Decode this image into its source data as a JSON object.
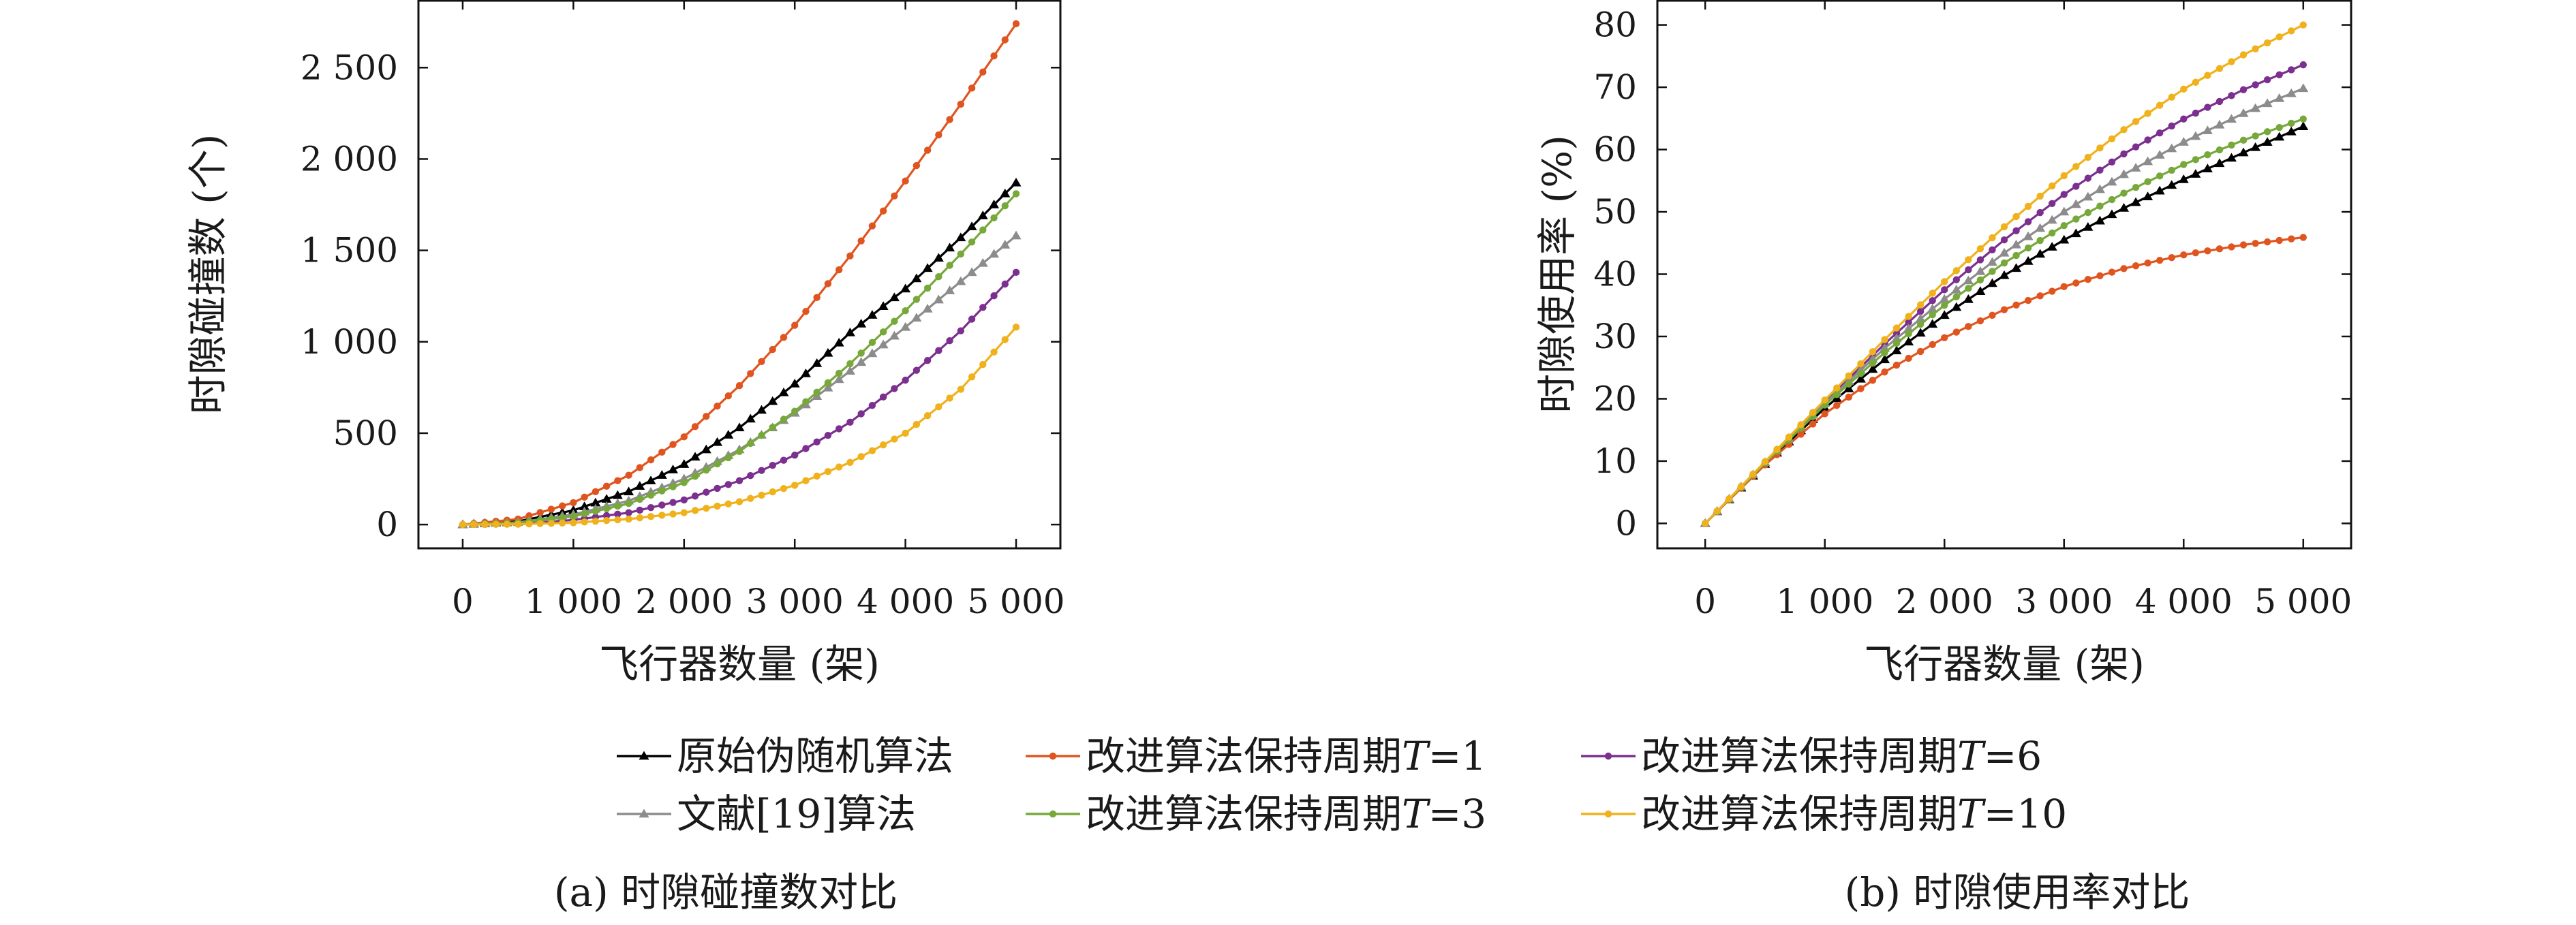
{
  "chart_data": [
    {
      "type": "line",
      "caption": "(a) 时隙碰撞数对比",
      "xlabel": "飞行器数量 (架)",
      "ylabel": "时隙碰撞数 (个)",
      "xlim": [
        -400,
        5400
      ],
      "ylim": [
        -130,
        2870
      ],
      "xticks": [
        0,
        1000,
        2000,
        3000,
        4000,
        5000
      ],
      "xtick_labels": [
        "0",
        "1 000",
        "2 000",
        "3 000",
        "4 000",
        "5 000"
      ],
      "yticks": [
        0,
        500,
        1000,
        1500,
        2000,
        2500
      ],
      "ytick_labels": [
        "0",
        "500",
        "1 000",
        "1 500",
        "2 000",
        "2 500"
      ],
      "grid": false,
      "series": [
        {
          "name": "原始伪随机算法",
          "color": "#000000",
          "marker": "triangle",
          "x": [
            0,
            500,
            1000,
            1500,
            2000,
            2500,
            3000,
            3500,
            4000,
            4500,
            5000
          ],
          "y": [
            0,
            18,
            78,
            180,
            330,
            530,
            770,
            1050,
            1290,
            1570,
            1870
          ]
        },
        {
          "name": "改进算法保持周期T=1",
          "color": "#e0551f",
          "marker": "dot",
          "x": [
            0,
            500,
            1000,
            1500,
            2000,
            2500,
            3000,
            3500,
            4000,
            4500,
            5000
          ],
          "y": [
            0,
            30,
            120,
            270,
            480,
            760,
            1090,
            1470,
            1880,
            2300,
            2740
          ]
        },
        {
          "name": "改进算法保持周期T=6",
          "color": "#7b2f8e",
          "marker": "dot",
          "x": [
            0,
            500,
            1000,
            1500,
            2000,
            2500,
            3000,
            3500,
            4000,
            4500,
            5000
          ],
          "y": [
            0,
            5,
            25,
            65,
            135,
            240,
            380,
            560,
            790,
            1060,
            1380
          ]
        },
        {
          "name": "文献[19]算法",
          "color": "#8c8c8c",
          "marker": "triangle",
          "x": [
            0,
            500,
            1000,
            1500,
            2000,
            2500,
            3000,
            3500,
            4000,
            4500,
            5000
          ],
          "y": [
            0,
            12,
            55,
            130,
            250,
            410,
            610,
            840,
            1080,
            1330,
            1580
          ]
        },
        {
          "name": "改进算法保持周期T=3",
          "color": "#77a83a",
          "marker": "dot",
          "x": [
            0,
            500,
            1000,
            1500,
            2000,
            2500,
            3000,
            3500,
            4000,
            4500,
            5000
          ],
          "y": [
            0,
            10,
            45,
            115,
            230,
            400,
            620,
            880,
            1170,
            1480,
            1810
          ]
        },
        {
          "name": "改进算法保持周期T=10",
          "color": "#f0b21c",
          "marker": "dot",
          "x": [
            0,
            500,
            1000,
            1500,
            2000,
            2500,
            3000,
            3500,
            4000,
            4500,
            5000
          ],
          "y": [
            0,
            2,
            10,
            30,
            65,
            125,
            215,
            340,
            500,
            740,
            1080
          ]
        }
      ]
    },
    {
      "type": "line",
      "caption": "(b) 时隙使用率对比",
      "xlabel": "飞行器数量 (架)",
      "ylabel": "时隙使用率 (%)",
      "xlim": [
        -400,
        5400
      ],
      "ylim": [
        -4,
        84
      ],
      "xticks": [
        0,
        1000,
        2000,
        3000,
        4000,
        5000
      ],
      "xtick_labels": [
        "0",
        "1 000",
        "2 000",
        "3 000",
        "4 000",
        "5 000"
      ],
      "yticks": [
        0,
        10,
        20,
        30,
        40,
        50,
        60,
        70,
        80
      ],
      "ytick_labels": [
        "0",
        "10",
        "20",
        "30",
        "40",
        "50",
        "60",
        "70",
        "80"
      ],
      "grid": false,
      "series": [
        {
          "name": "原始伪随机算法",
          "color": "#000000",
          "marker": "triangle",
          "x": [
            0,
            500,
            1000,
            1500,
            2000,
            2500,
            3000,
            3500,
            4000,
            4500,
            5000
          ],
          "y": [
            0,
            9.5,
            18.5,
            26.3,
            33.4,
            39.8,
            45.5,
            50.6,
            55.2,
            59.5,
            63.7
          ]
        },
        {
          "name": "改进算法保持周期T=1",
          "color": "#e0551f",
          "marker": "dot",
          "x": [
            0,
            500,
            1000,
            1500,
            2000,
            2500,
            3000,
            3500,
            4000,
            4500,
            5000
          ],
          "y": [
            0,
            9.4,
            17.6,
            24.3,
            29.8,
            34.3,
            38.0,
            40.9,
            43.1,
            44.7,
            45.9
          ]
        },
        {
          "name": "改进算法保持周期T=6",
          "color": "#7b2f8e",
          "marker": "dot",
          "x": [
            0,
            500,
            1000,
            1500,
            2000,
            2500,
            3000,
            3500,
            4000,
            4500,
            5000
          ],
          "y": [
            0,
            9.8,
            19.5,
            28.8,
            37.5,
            45.5,
            52.8,
            59.3,
            64.9,
            69.6,
            73.6
          ]
        },
        {
          "name": "文献[19]算法",
          "color": "#8c8c8c",
          "marker": "triangle",
          "x": [
            0,
            500,
            1000,
            1500,
            2000,
            2500,
            3000,
            3500,
            4000,
            4500,
            5000
          ],
          "y": [
            0,
            9.8,
            19.3,
            28.1,
            36.0,
            43.4,
            50.0,
            56.0,
            61.2,
            65.8,
            69.8
          ]
        },
        {
          "name": "改进算法保持周期T=3",
          "color": "#77a83a",
          "marker": "dot",
          "x": [
            0,
            500,
            1000,
            1500,
            2000,
            2500,
            3000,
            3500,
            4000,
            4500,
            5000
          ],
          "y": [
            0,
            9.7,
            19.0,
            27.4,
            35.0,
            41.8,
            47.8,
            53.0,
            57.6,
            61.5,
            64.9
          ]
        },
        {
          "name": "改进算法保持周期T=10",
          "color": "#f0b21c",
          "marker": "dot",
          "x": [
            0,
            500,
            1000,
            1500,
            2000,
            2500,
            3000,
            3500,
            4000,
            4500,
            5000
          ],
          "y": [
            0,
            9.9,
            19.8,
            29.5,
            38.8,
            47.6,
            55.8,
            63.2,
            69.7,
            75.2,
            80.0
          ]
        }
      ]
    }
  ],
  "legend": {
    "placement": "bottom-center",
    "entries": [
      {
        "label": "原始伪随机算法",
        "color": "#000000",
        "marker": "triangle"
      },
      {
        "label": "改进算法保持周期",
        "italic_var": "T",
        "suffix": "=1",
        "color": "#e0551f",
        "marker": "dot"
      },
      {
        "label": "改进算法保持周期",
        "italic_var": "T",
        "suffix": "=6",
        "color": "#7b2f8e",
        "marker": "dot"
      },
      {
        "label": "文献[19]算法",
        "color": "#8c8c8c",
        "marker": "triangle"
      },
      {
        "label": "改进算法保持周期",
        "italic_var": "T",
        "suffix": "=3",
        "color": "#77a83a",
        "marker": "dot"
      },
      {
        "label": "改进算法保持周期",
        "italic_var": "T",
        "suffix": "=10",
        "color": "#f0b21c",
        "marker": "dot"
      }
    ]
  }
}
